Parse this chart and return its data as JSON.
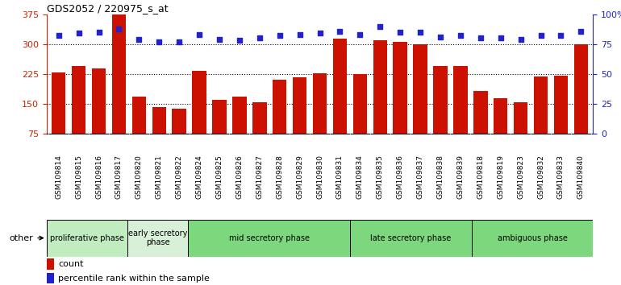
{
  "title": "GDS2052 / 220975_s_at",
  "samples": [
    "GSM109814",
    "GSM109815",
    "GSM109816",
    "GSM109817",
    "GSM109820",
    "GSM109821",
    "GSM109822",
    "GSM109824",
    "GSM109825",
    "GSM109826",
    "GSM109827",
    "GSM109828",
    "GSM109829",
    "GSM109830",
    "GSM109831",
    "GSM109834",
    "GSM109835",
    "GSM109836",
    "GSM109837",
    "GSM109838",
    "GSM109839",
    "GSM109818",
    "GSM109819",
    "GSM109823",
    "GSM109832",
    "GSM109833",
    "GSM109840"
  ],
  "bar_values": [
    230,
    245,
    240,
    375,
    168,
    143,
    138,
    233,
    160,
    168,
    155,
    210,
    218,
    228,
    313,
    225,
    310,
    305,
    300,
    245,
    245,
    183,
    165,
    155,
    220,
    222,
    300
  ],
  "percentile_values": [
    82,
    84,
    85,
    88,
    79,
    77,
    77,
    83,
    79,
    78,
    80,
    82,
    83,
    84,
    86,
    83,
    90,
    85,
    85,
    81,
    82,
    80,
    80,
    79,
    82,
    82,
    86
  ],
  "phase_groups": [
    {
      "label": "proliferative phase",
      "count": 4,
      "color": "#c0ecc0"
    },
    {
      "label": "early secretory\nphase",
      "count": 3,
      "color": "#daf0da"
    },
    {
      "label": "mid secretory phase",
      "count": 8,
      "color": "#7dd87d"
    },
    {
      "label": "late secretory phase",
      "count": 6,
      "color": "#7dd87d"
    },
    {
      "label": "ambiguous phase",
      "count": 6,
      "color": "#7dd87d"
    }
  ],
  "ylim_left": [
    75,
    375
  ],
  "ylim_right": [
    0,
    100
  ],
  "yticks_left": [
    75,
    150,
    225,
    300,
    375
  ],
  "yticks_right": [
    0,
    25,
    50,
    75,
    100
  ],
  "bar_color": "#cc1100",
  "dot_color": "#2222cc",
  "axis_left_color": "#cc2200",
  "axis_right_color": "#2222cc",
  "tick_bg_color": "#d8d8d8",
  "phase_colors": [
    "#c0ecc0",
    "#d8f0d8",
    "#7dd87d",
    "#7dd87d",
    "#7dd87d"
  ]
}
